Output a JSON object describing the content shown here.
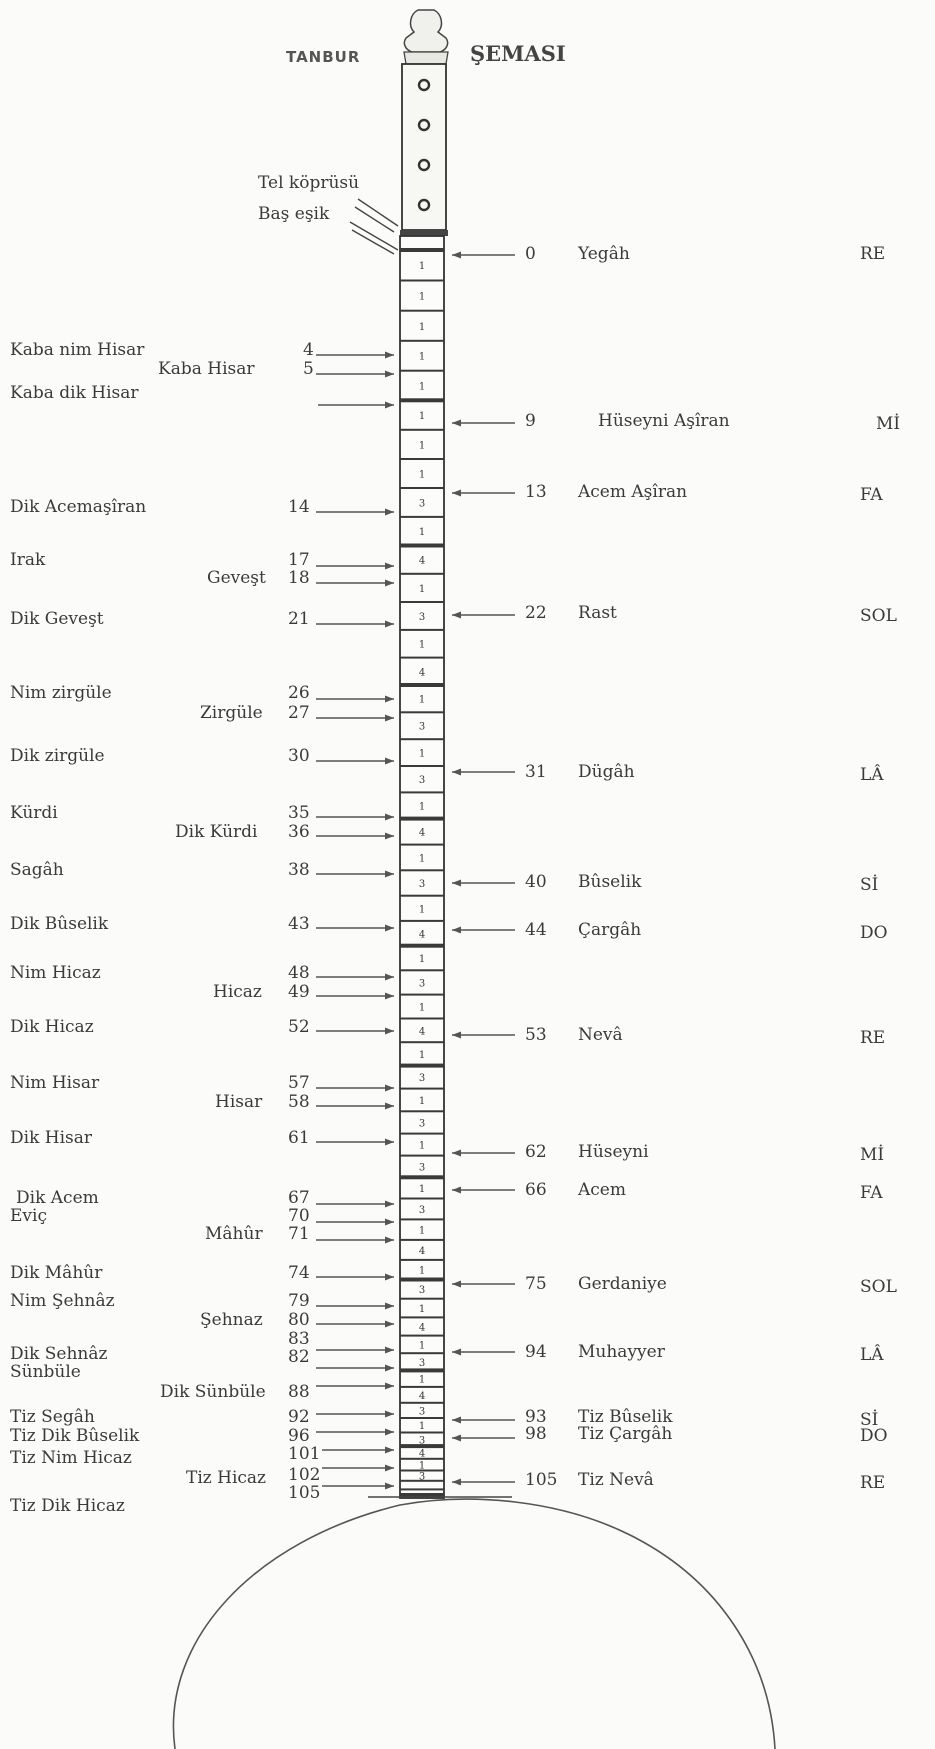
{
  "title_left": "TANBUR",
  "title_right": "ŞEMASI",
  "neck_labels": {
    "string_bridge": "Tel köprüsü",
    "head_nut": "Baş eşik"
  },
  "left_notes": [
    {
      "name": "Kaba nim Hisar",
      "fret": "4"
    },
    {
      "name": "Kaba Hisar",
      "fret": "5"
    },
    {
      "name": "Kaba dik Hisar",
      "fret": ""
    },
    {
      "name": "Dik Acemaşîran",
      "fret": "14"
    },
    {
      "name": "Irak",
      "fret": "17"
    },
    {
      "name": "Geveşt",
      "fret": "18"
    },
    {
      "name": "Dik Geveşt",
      "fret": "21"
    },
    {
      "name": "Nim zirgüle",
      "fret": "26"
    },
    {
      "name": "Zirgüle",
      "fret": "27"
    },
    {
      "name": "Dik zirgüle",
      "fret": "30"
    },
    {
      "name": "Kürdi",
      "fret": "35"
    },
    {
      "name": "Dik Kürdi",
      "fret": "36"
    },
    {
      "name": "Sagâh",
      "fret": "38"
    },
    {
      "name": "Dik Bûselik",
      "fret": "43"
    },
    {
      "name": "Nim Hicaz",
      "fret": "48"
    },
    {
      "name": "Hicaz",
      "fret": "49"
    },
    {
      "name": "Dik Hicaz",
      "fret": "52"
    },
    {
      "name": "Nim Hisar",
      "fret": "57"
    },
    {
      "name": "Hisar",
      "fret": "58"
    },
    {
      "name": "Dik Hisar",
      "fret": "61"
    },
    {
      "name": "Dik Acem",
      "fret": "67"
    },
    {
      "name": "Eviç",
      "fret": "70"
    },
    {
      "name": "Mâhûr",
      "fret": "71"
    },
    {
      "name": "Dik Mâhûr",
      "fret": "74"
    },
    {
      "name": "Nim Şehnâz",
      "fret": "79"
    },
    {
      "name": "Şehnaz",
      "fret": "80"
    },
    {
      "name": "Dik Sehnâz",
      "fret": "83"
    },
    {
      "name": "Sünbüle",
      "fret": "82"
    },
    {
      "name": "Dik Sünbüle",
      "fret": "88"
    },
    {
      "name": "Tiz Segâh",
      "fret": "92"
    },
    {
      "name": "Tiz Dik Bûselik",
      "fret": "96"
    },
    {
      "name": "Tiz Nim Hicaz",
      "fret": "101"
    },
    {
      "name": "Tiz Hicaz",
      "fret": "102"
    },
    {
      "name": "Tiz Dik Hicaz",
      "fret": "105"
    }
  ],
  "right_notes": [
    {
      "fret": "0",
      "name": "Yegâh",
      "pitch": "RE"
    },
    {
      "fret": "9",
      "name": "Hüseyni Aşîran",
      "pitch": "Mİ"
    },
    {
      "fret": "13",
      "name": "Acem Aşîran",
      "pitch": "FA"
    },
    {
      "fret": "22",
      "name": "Rast",
      "pitch": "SOL"
    },
    {
      "fret": "31",
      "name": "Dügâh",
      "pitch": "LÂ"
    },
    {
      "fret": "40",
      "name": "Bûselik",
      "pitch": "Sİ"
    },
    {
      "fret": "44",
      "name": "Çargâh",
      "pitch": "DO"
    },
    {
      "fret": "53",
      "name": "Nevâ",
      "pitch": "RE"
    },
    {
      "fret": "62",
      "name": "Hüseyni",
      "pitch": "Mİ"
    },
    {
      "fret": "66",
      "name": "Acem",
      "pitch": "FA"
    },
    {
      "fret": "75",
      "name": "Gerdaniye",
      "pitch": "SOL"
    },
    {
      "fret": "94",
      "name": "Muhayyer",
      "pitch": "LÂ"
    },
    {
      "fret": "93",
      "name": "Tiz Bûselik",
      "pitch": "Sİ"
    },
    {
      "fret": "98",
      "name": "Tiz Çargâh",
      "pitch": "DO"
    },
    {
      "fret": "105",
      "name": "Tiz Nevâ",
      "pitch": "RE"
    }
  ],
  "fret_marks": [
    "1",
    "1",
    "1",
    "1",
    "1",
    "1",
    "1",
    "1",
    "3",
    "1",
    "4",
    "1",
    "3",
    "1",
    "4",
    "1",
    "3",
    "1",
    "3",
    "1",
    "4",
    "1",
    "3",
    "1",
    "4",
    "1",
    "3",
    "1",
    "4",
    "1",
    "3",
    "1",
    "3",
    "1",
    "3",
    "1",
    "3",
    "1",
    "4",
    "1",
    "3",
    "1",
    "4",
    "1",
    "3",
    "1",
    "4",
    "3",
    "1",
    "3",
    "4",
    "1",
    "3"
  ]
}
